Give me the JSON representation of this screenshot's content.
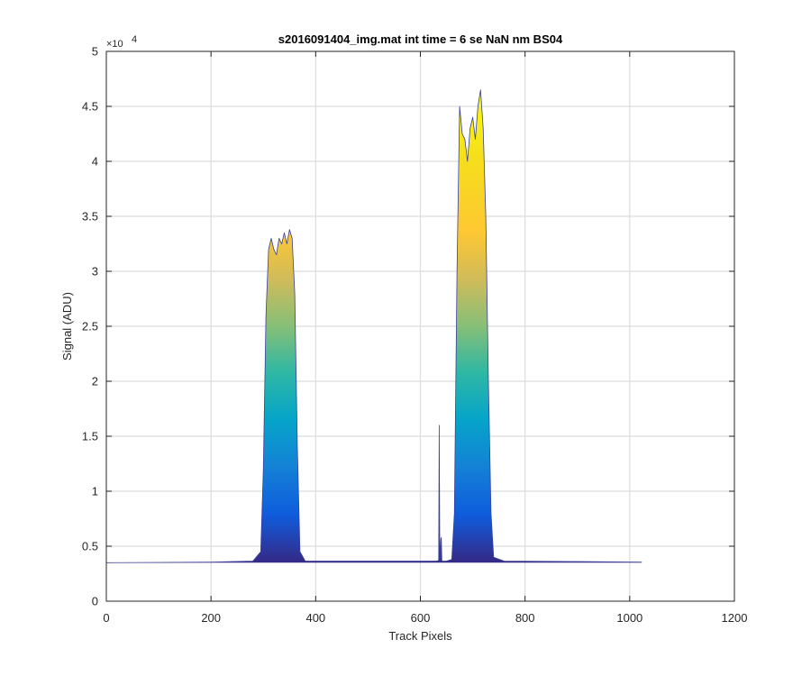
{
  "chart_data": {
    "type": "area",
    "title": "s2016091404_img.mat int time = 6 se  NaN nm BS04",
    "xlabel": "Track Pixels",
    "ylabel": "Signal (ADU)",
    "xlim": [
      0,
      1200
    ],
    "ylim": [
      0,
      50000
    ],
    "x_ticks": [
      "0",
      "200",
      "400",
      "600",
      "800",
      "1000",
      "1200"
    ],
    "y_ticks": [
      "0",
      "0.5",
      "1",
      "1.5",
      "2",
      "2.5",
      "3",
      "3.5",
      "4",
      "4.5",
      "5"
    ],
    "y_multiplier": "×10",
    "y_multiplier_exp": "4",
    "grid": true,
    "colormap": "parula",
    "color_range": [
      3600,
      46500
    ],
    "series": [
      {
        "x": [
          0,
          100,
          200,
          280,
          295,
          300,
          305,
          310,
          315,
          320,
          325,
          330,
          335,
          340,
          345,
          350,
          355,
          360,
          365,
          370,
          380,
          500,
          600,
          630,
          635,
          636,
          637,
          638,
          639,
          640,
          641,
          642,
          643,
          650,
          660,
          665,
          670,
          675,
          680,
          685,
          690,
          695,
          700,
          705,
          710,
          715,
          720,
          725,
          730,
          735,
          740,
          760,
          900,
          1023
        ],
        "y": [
          3500,
          3520,
          3550,
          3650,
          4500,
          12000,
          26000,
          32000,
          33000,
          32000,
          31500,
          33000,
          32500,
          33500,
          32500,
          33800,
          33000,
          28000,
          14000,
          4500,
          3650,
          3650,
          3650,
          3650,
          3700,
          16000,
          5500,
          3700,
          5600,
          5800,
          3700,
          3650,
          3650,
          3650,
          3800,
          8000,
          30000,
          45000,
          42500,
          42000,
          40000,
          43000,
          44000,
          42000,
          45000,
          46500,
          43000,
          35000,
          20000,
          8000,
          4000,
          3650,
          3600,
          3550
        ]
      }
    ]
  }
}
